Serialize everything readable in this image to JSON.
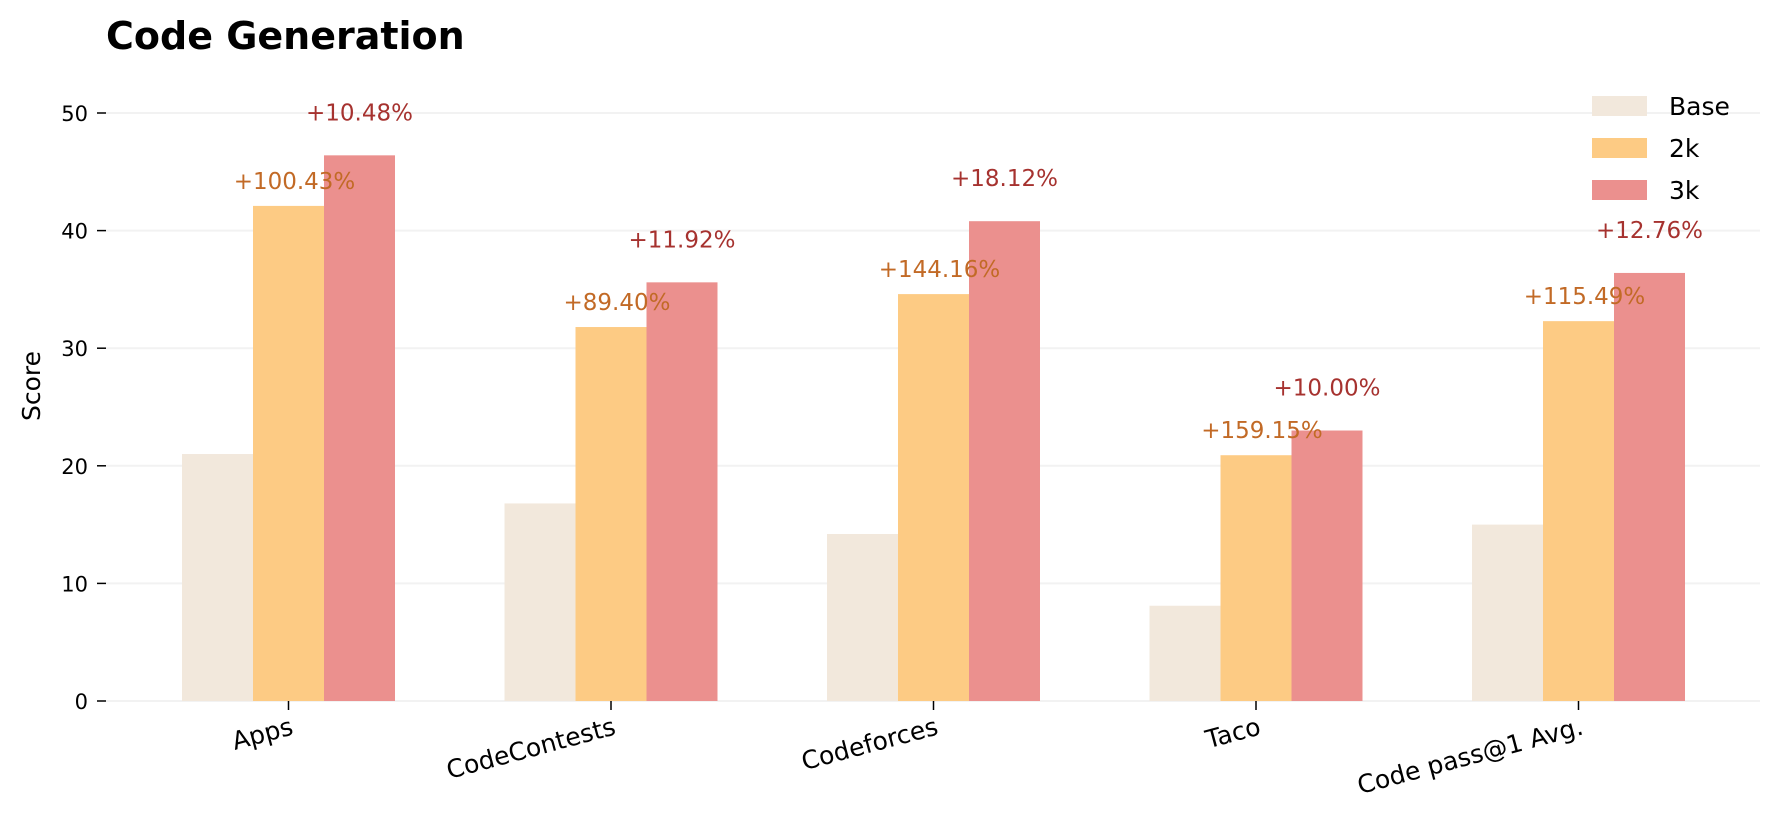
{
  "chart_data": {
    "type": "bar",
    "title": "Code Generation",
    "xlabel": "",
    "ylabel": "Score",
    "ylim": [
      0,
      52
    ],
    "yticks": [
      0,
      10,
      20,
      30,
      40,
      50
    ],
    "grid": true,
    "legend_position": "top-right",
    "categories": [
      "Apps",
      "CodeContests",
      "Codeforces",
      "Taco",
      "Code pass@1 Avg."
    ],
    "series": [
      {
        "name": "Base",
        "color": "#f2e8dc",
        "values": [
          21.0,
          16.8,
          14.2,
          8.1,
          15.0
        ]
      },
      {
        "name": "2k",
        "color": "#fdcb84",
        "values": [
          42.1,
          31.8,
          34.6,
          20.9,
          32.3
        ]
      },
      {
        "name": "3k",
        "color": "#eb908e",
        "values": [
          46.4,
          35.6,
          40.8,
          23.0,
          36.4
        ]
      }
    ],
    "annotations": {
      "2k": {
        "color": "#c26a26",
        "labels": [
          "+100.43%",
          "+89.40%",
          "+144.16%",
          "+159.15%",
          "+115.49%"
        ]
      },
      "3k": {
        "color": "#a6322f",
        "labels": [
          "+10.48%",
          "+11.92%",
          "+18.12%",
          "+10.00%",
          "+12.76%"
        ]
      }
    }
  }
}
